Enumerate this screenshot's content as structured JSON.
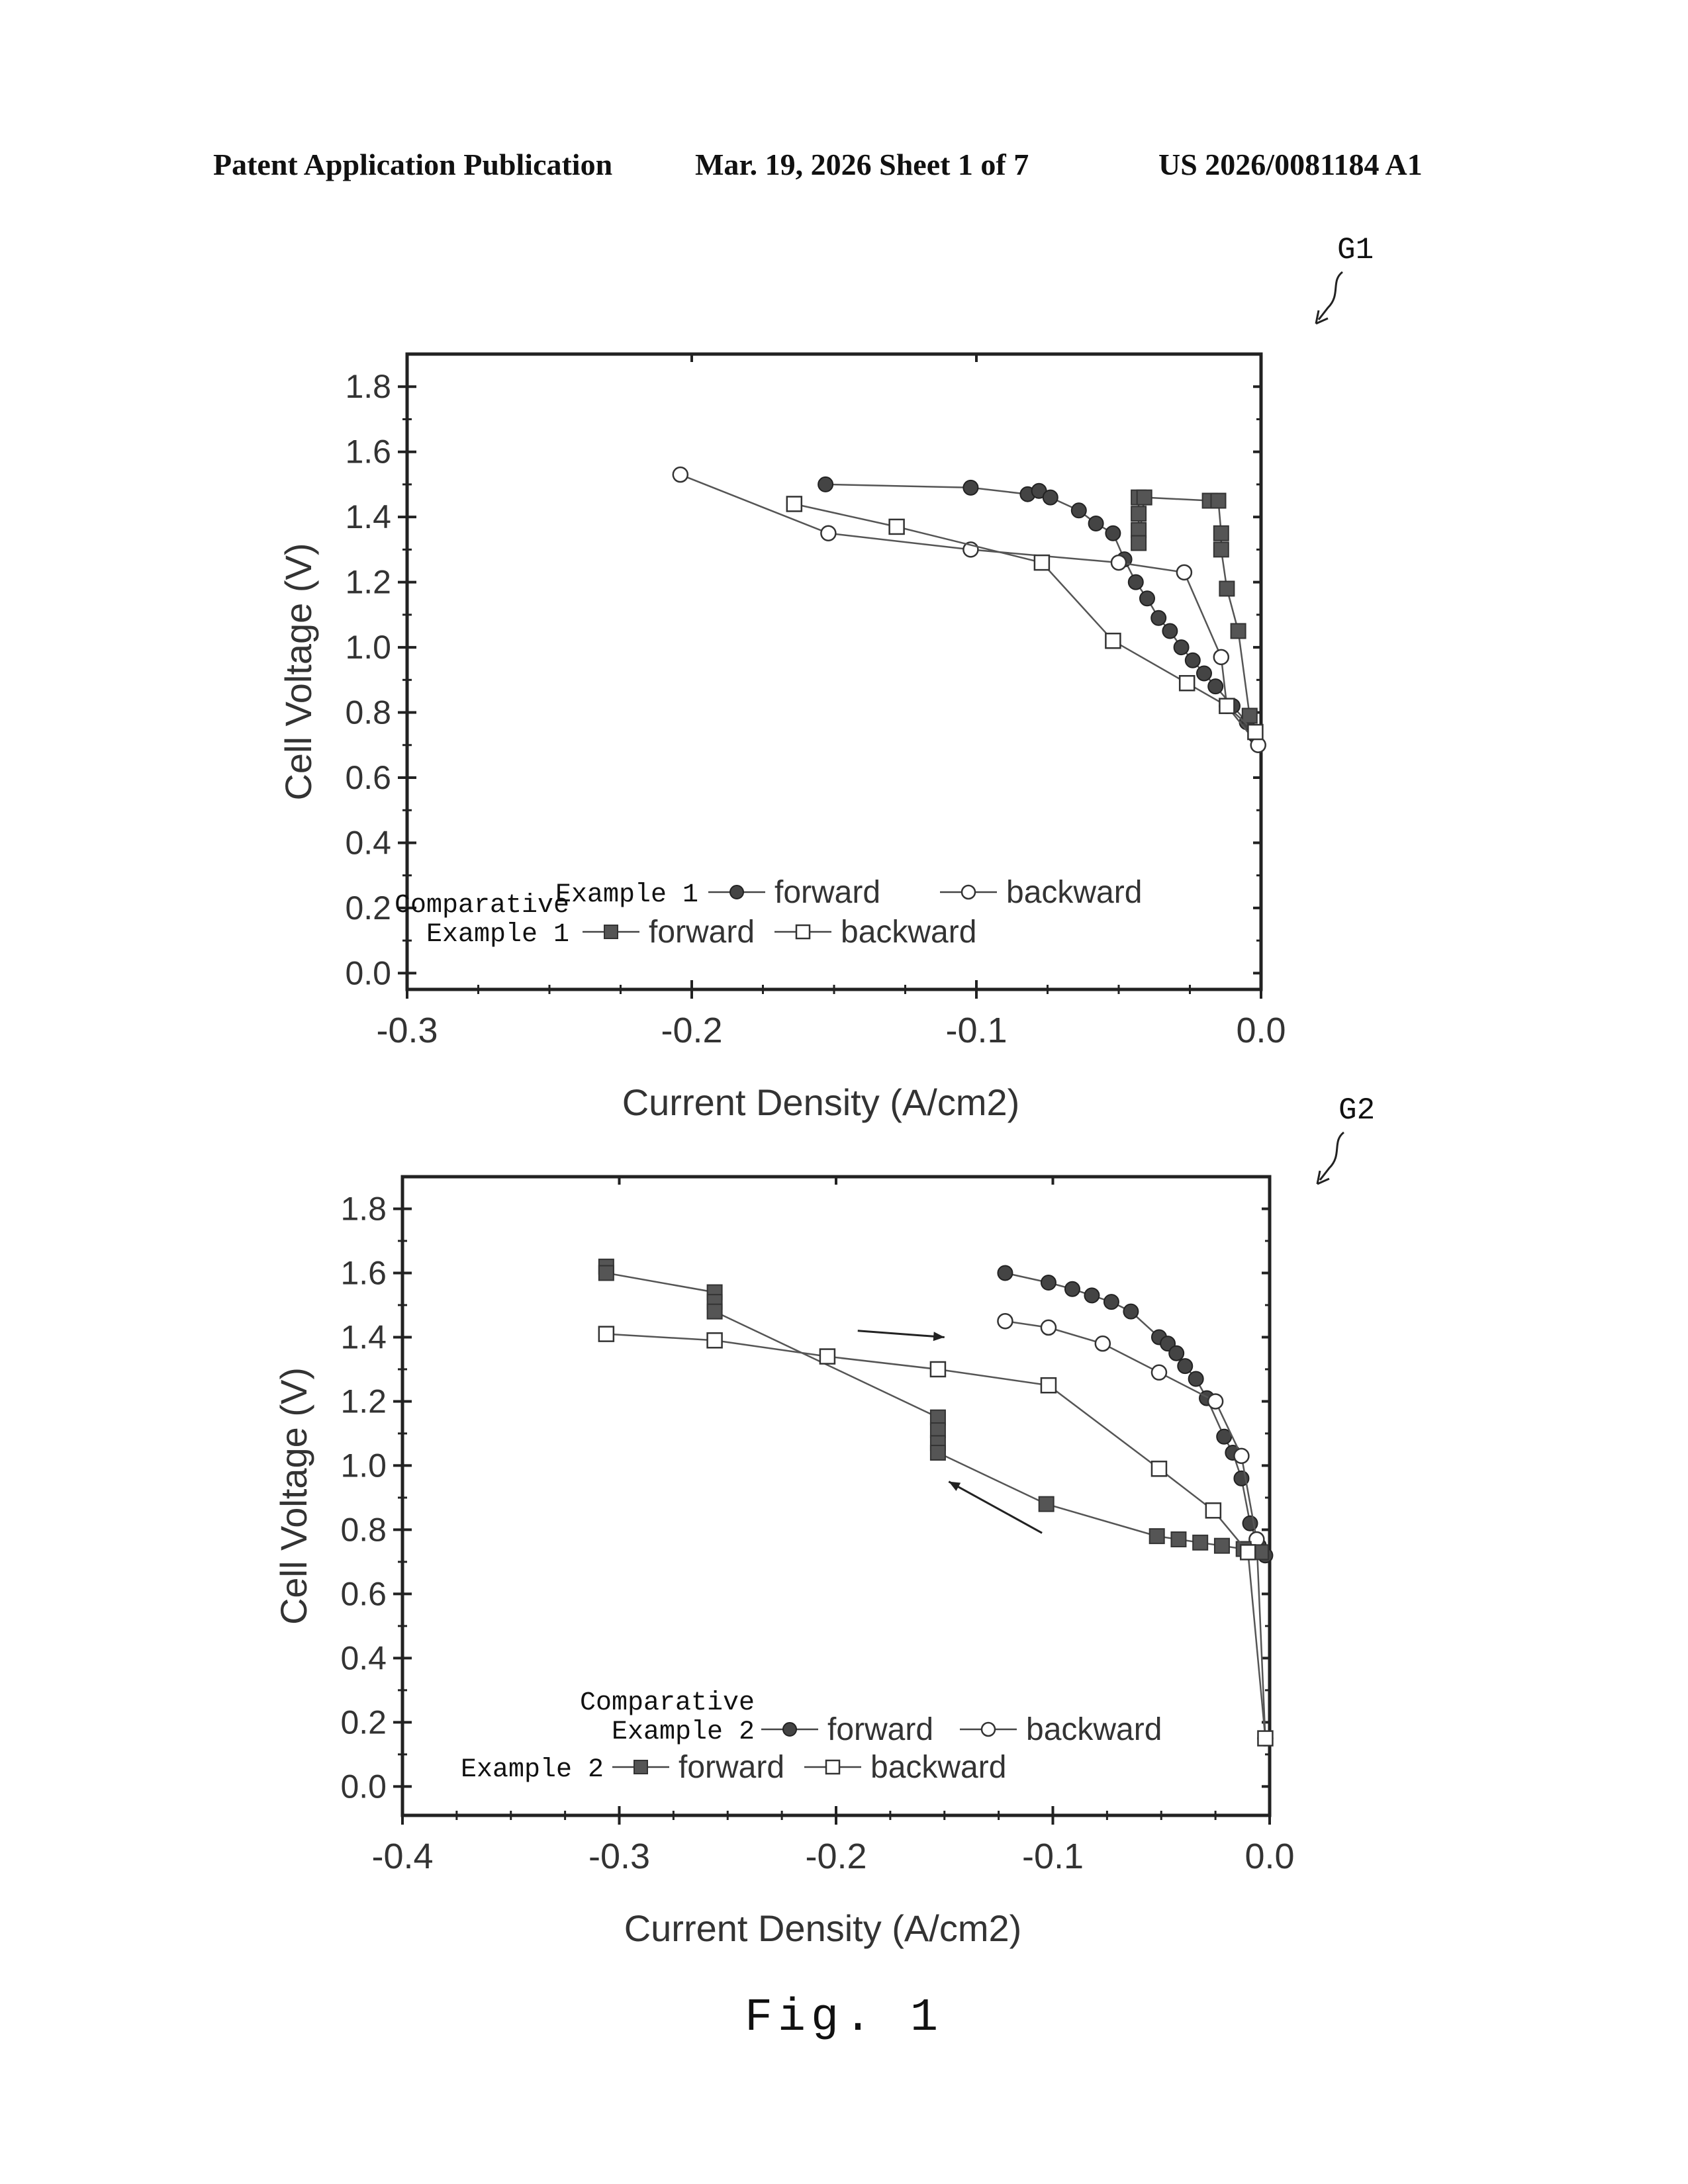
{
  "header": {
    "title": "Patent Application Publication",
    "date_sheet": "Mar. 19, 2026  Sheet 1 of 7",
    "pub_number": "US 2026/0081184 A1"
  },
  "figure_caption": "Fig. 1",
  "chart_data": [
    {
      "id": "G1",
      "label": "G1",
      "type": "line",
      "xlabel": "Current Density (A/cm2)",
      "ylabel": "Cell Voltage (V)",
      "xlim": [
        -0.3,
        0.0
      ],
      "ylim": [
        -0.05,
        1.9
      ],
      "x_ticks": [
        -0.3,
        -0.2,
        -0.1,
        0.0
      ],
      "x_tick_labels": [
        "-0.3",
        "-0.2",
        "-0.1",
        "0.0"
      ],
      "y_ticks": [
        0.0,
        0.2,
        0.4,
        0.6,
        0.8,
        1.0,
        1.2,
        1.4,
        1.6,
        1.8
      ],
      "y_tick_labels": [
        "0.0",
        "0.2",
        "0.4",
        "0.6",
        "0.8",
        "1.0",
        "1.2",
        "1.4",
        "1.6",
        "1.8"
      ],
      "legend": {
        "placement": "bottom-left",
        "rows": [
          {
            "group": "Example 1",
            "items": [
              {
                "series": 0,
                "label": "forward"
              },
              {
                "series": 1,
                "label": "backward"
              }
            ]
          },
          {
            "group_lines": [
              "Comparative",
              "Example 1"
            ],
            "items": [
              {
                "series": 2,
                "label": "forward"
              },
              {
                "series": 3,
                "label": "backward"
              }
            ]
          }
        ]
      },
      "series": [
        {
          "name": "Example 1 forward",
          "marker": "filled-circle",
          "x": [
            -0.153,
            -0.102,
            -0.082,
            -0.078,
            -0.074,
            -0.064,
            -0.058,
            -0.052,
            -0.048,
            -0.044,
            -0.04,
            -0.036,
            -0.032,
            -0.028,
            -0.024,
            -0.02,
            -0.016,
            -0.01,
            -0.005,
            -0.002
          ],
          "y": [
            1.5,
            1.49,
            1.47,
            1.48,
            1.46,
            1.42,
            1.38,
            1.35,
            1.27,
            1.2,
            1.15,
            1.09,
            1.05,
            1.0,
            0.96,
            0.92,
            0.88,
            0.82,
            0.77,
            0.73
          ]
        },
        {
          "name": "Example 1 backward",
          "marker": "open-circle",
          "x": [
            -0.204,
            -0.152,
            -0.102,
            -0.05,
            -0.027,
            -0.014,
            -0.012,
            -0.001
          ],
          "y": [
            1.53,
            1.35,
            1.3,
            1.26,
            1.23,
            0.97,
            0.82,
            0.7
          ]
        },
        {
          "name": "Comparative Example 1 forward",
          "marker": "filled-square",
          "x": [
            -0.043,
            -0.043,
            -0.043,
            -0.043,
            -0.041,
            -0.018,
            -0.015,
            -0.014,
            -0.014,
            -0.012,
            -0.008,
            -0.004
          ],
          "y": [
            1.46,
            1.41,
            1.36,
            1.32,
            1.46,
            1.45,
            1.45,
            1.35,
            1.3,
            1.18,
            1.05,
            0.79
          ]
        },
        {
          "name": "Comparative Example 1 backward",
          "marker": "open-square",
          "x": [
            -0.164,
            -0.128,
            -0.077,
            -0.052,
            -0.026,
            -0.012,
            -0.002
          ],
          "y": [
            1.44,
            1.37,
            1.26,
            1.02,
            0.89,
            0.82,
            0.74
          ]
        }
      ]
    },
    {
      "id": "G2",
      "label": "G2",
      "type": "line",
      "xlabel": "Current Density (A/cm2)",
      "ylabel": "Cell Voltage (V)",
      "xlim": [
        -0.4,
        0.0
      ],
      "ylim": [
        -0.09,
        1.9
      ],
      "x_ticks": [
        -0.4,
        -0.3,
        -0.2,
        -0.1,
        0.0
      ],
      "x_tick_labels": [
        "-0.4",
        "-0.3",
        "-0.2",
        "-0.1",
        "0.0"
      ],
      "y_ticks": [
        0.0,
        0.2,
        0.4,
        0.6,
        0.8,
        1.0,
        1.2,
        1.4,
        1.6,
        1.8
      ],
      "y_tick_labels": [
        "0.0",
        "0.2",
        "0.4",
        "0.6",
        "0.8",
        "1.0",
        "1.2",
        "1.4",
        "1.6",
        "1.8"
      ],
      "legend": {
        "placement": "bottom-left",
        "rows": [
          {
            "group_lines": [
              "Comparative",
              "Example 2"
            ],
            "items": [
              {
                "series": 0,
                "label": "forward"
              },
              {
                "series": 1,
                "label": "backward"
              }
            ]
          },
          {
            "group": "Example 2",
            "items": [
              {
                "series": 2,
                "label": "forward"
              },
              {
                "series": 3,
                "label": "backward"
              }
            ]
          }
        ]
      },
      "series": [
        {
          "name": "Comparative Example 2 forward",
          "marker": "filled-circle",
          "x": [
            -0.122,
            -0.102,
            -0.091,
            -0.082,
            -0.073,
            -0.064,
            -0.051,
            -0.047,
            -0.043,
            -0.039,
            -0.034,
            -0.029,
            -0.021,
            -0.017,
            -0.013,
            -0.009,
            -0.005,
            -0.002
          ],
          "y": [
            1.6,
            1.57,
            1.55,
            1.53,
            1.51,
            1.48,
            1.4,
            1.38,
            1.35,
            1.31,
            1.27,
            1.21,
            1.09,
            1.04,
            0.96,
            0.82,
            0.75,
            0.72
          ]
        },
        {
          "name": "Comparative Example 2 backward",
          "marker": "open-circle",
          "x": [
            -0.122,
            -0.102,
            -0.077,
            -0.051,
            -0.025,
            -0.013,
            -0.006,
            -0.002
          ],
          "y": [
            1.45,
            1.43,
            1.38,
            1.29,
            1.2,
            1.03,
            0.77,
            0.15
          ]
        },
        {
          "name": "Example 2 forward",
          "marker": "filled-square",
          "x": [
            -0.306,
            -0.306,
            -0.256,
            -0.256,
            -0.256,
            -0.153,
            -0.153,
            -0.153,
            -0.153,
            -0.103,
            -0.052,
            -0.042,
            -0.032,
            -0.022,
            -0.012,
            -0.004
          ],
          "y": [
            1.62,
            1.6,
            1.54,
            1.51,
            1.48,
            1.15,
            1.11,
            1.07,
            1.04,
            0.88,
            0.78,
            0.77,
            0.76,
            0.75,
            0.74,
            0.73
          ]
        },
        {
          "name": "Example 2 backward",
          "marker": "open-square",
          "x": [
            -0.306,
            -0.256,
            -0.204,
            -0.153,
            -0.102,
            -0.051,
            -0.026,
            -0.01,
            -0.002
          ],
          "y": [
            1.41,
            1.39,
            1.34,
            1.3,
            1.25,
            0.99,
            0.86,
            0.73,
            0.15
          ]
        }
      ],
      "annotations": [
        {
          "type": "arrow",
          "direction": "right",
          "from": [
            -0.19,
            1.42
          ],
          "to": [
            -0.15,
            1.4
          ]
        },
        {
          "type": "arrow",
          "direction": "left",
          "from": [
            -0.105,
            0.79
          ],
          "to": [
            -0.148,
            0.95
          ]
        }
      ]
    }
  ]
}
